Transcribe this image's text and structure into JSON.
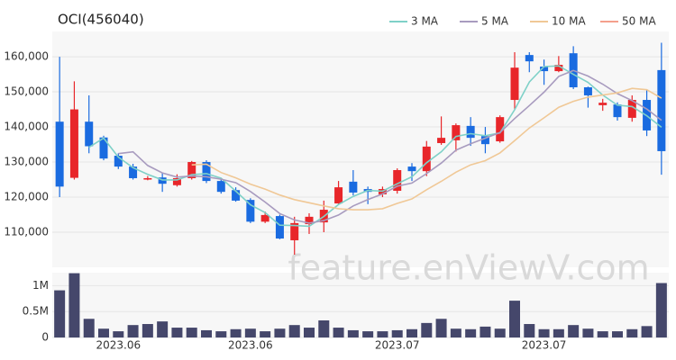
{
  "chart_data": [
    {
      "type": "candlestick",
      "title": "OCI(456040)",
      "categories": [
        null,
        null,
        null,
        null,
        "2023.06",
        null,
        null,
        null,
        null,
        null,
        null,
        null,
        null,
        "2023.06",
        null,
        null,
        null,
        null,
        null,
        null,
        null,
        null,
        null,
        "2023.07",
        null,
        null,
        null,
        null,
        null,
        null,
        null,
        null,
        null,
        "2023.07",
        null,
        null,
        null,
        null,
        null,
        null,
        null,
        null
      ],
      "open": [
        141500,
        125500,
        141500,
        137000,
        131800,
        128700,
        125000,
        125600,
        123400,
        125400,
        130000,
        124600,
        122000,
        119200,
        113000,
        114600,
        107700,
        112300,
        112800,
        118200,
        124400,
        122300,
        120800,
        121800,
        128700,
        127400,
        135400,
        136200,
        140300,
        137400,
        135900,
        147700,
        160500,
        157200,
        155900,
        161000,
        151300,
        146200,
        146400,
        142600,
        147700,
        156200
      ],
      "high": [
        160000,
        153000,
        149000,
        137500,
        132500,
        129500,
        126000,
        127000,
        126500,
        130300,
        130500,
        125400,
        122800,
        119700,
        115900,
        115000,
        114400,
        115400,
        119000,
        124600,
        127700,
        123000,
        123000,
        128200,
        129700,
        136000,
        143000,
        141000,
        142800,
        140000,
        143300,
        161300,
        161300,
        159200,
        160200,
        163000,
        151500,
        148000,
        147000,
        149000,
        150500,
        164000
      ],
      "low": [
        120000,
        125000,
        132500,
        130500,
        128000,
        125000,
        124800,
        121500,
        123000,
        125000,
        124000,
        121000,
        118700,
        112600,
        112600,
        108000,
        103600,
        109500,
        110000,
        118000,
        120500,
        118000,
        120000,
        121000,
        124600,
        126000,
        134900,
        133000,
        134600,
        132500,
        135500,
        145000,
        155600,
        152000,
        155600,
        150800,
        145500,
        144600,
        141800,
        141500,
        137400,
        126400
      ],
      "close": [
        123000,
        145000,
        134500,
        131000,
        128700,
        125400,
        125400,
        123800,
        125400,
        130000,
        124600,
        121500,
        119000,
        113000,
        114900,
        108200,
        112600,
        114400,
        116400,
        122800,
        121300,
        121500,
        122300,
        127700,
        127400,
        134400,
        136900,
        140500,
        136900,
        135100,
        142800,
        156900,
        158700,
        155900,
        157700,
        151300,
        149000,
        146900,
        142800,
        147700,
        139000,
        133100
      ],
      "up_color": "#e8262a",
      "down_color": "#1a6be0",
      "series": [
        {
          "name": "3 MA",
          "color": "#7fd1c8",
          "values": [
            null,
            null,
            134200,
            136800,
            131400,
            128400,
            126500,
            124900,
            124900,
            126400,
            126700,
            125400,
            121700,
            117800,
            115600,
            112000,
            111900,
            111700,
            114500,
            117900,
            120200,
            121900,
            121700,
            123800,
            125800,
            129800,
            132900,
            137300,
            138100,
            137500,
            138300,
            144900,
            152800,
            157200,
            157400,
            155000,
            152700,
            149100,
            146200,
            145800,
            143200,
            139900
          ]
        },
        {
          "name": "5 MA",
          "color": "#a89bbf",
          "values": [
            null,
            null,
            null,
            null,
            132400,
            132900,
            129000,
            126900,
            125700,
            126000,
            125800,
            125100,
            124100,
            121600,
            118600,
            115300,
            113500,
            112600,
            113300,
            114900,
            117500,
            119300,
            120900,
            123100,
            124000,
            126700,
            129700,
            133400,
            135200,
            136800,
            138400,
            142400,
            146100,
            149900,
            154400,
            156100,
            154500,
            152200,
            149500,
            147500,
            145100,
            141900
          ]
        },
        {
          "name": "10 MA",
          "color": "#f0c896",
          "values": [
            null,
            null,
            null,
            null,
            null,
            null,
            null,
            null,
            null,
            129200,
            129400,
            127000,
            125500,
            123700,
            122300,
            120600,
            119300,
            118400,
            117500,
            116700,
            116400,
            116400,
            116700,
            118200,
            119500,
            122100,
            124500,
            127100,
            129200,
            130400,
            132600,
            136100,
            139700,
            142600,
            145600,
            147300,
            148500,
            149100,
            149700,
            151000,
            150600,
            148200
          ]
        },
        {
          "name": "50 MA",
          "color": "#f4a08c",
          "values": [
            null,
            null,
            null,
            null,
            null,
            null,
            null,
            null,
            null,
            null,
            null,
            null,
            null,
            null,
            null,
            null,
            null,
            null,
            null,
            null,
            null,
            null,
            null,
            null,
            null,
            null,
            null,
            null,
            null,
            null,
            null,
            null,
            null,
            null,
            null,
            null,
            null,
            null,
            null,
            null,
            null,
            null
          ]
        }
      ],
      "ylim": [
        100000,
        167200
      ],
      "yticks": [
        {
          "value": 110000,
          "label": "110,000"
        },
        {
          "value": 120000,
          "label": "120,000"
        },
        {
          "value": 130000,
          "label": "130,000"
        },
        {
          "value": 140000,
          "label": "140,000"
        },
        {
          "value": 150000,
          "label": "150,000"
        },
        {
          "value": 160000,
          "label": "160,000"
        }
      ],
      "grid": true,
      "watermark": "feature.enViewV.com"
    },
    {
      "type": "bar",
      "color": "#45476b",
      "values": [
        910000,
        1240000,
        360000,
        170000,
        120000,
        240000,
        260000,
        310000,
        190000,
        190000,
        140000,
        120000,
        160000,
        170000,
        120000,
        170000,
        240000,
        190000,
        330000,
        190000,
        140000,
        120000,
        120000,
        140000,
        160000,
        280000,
        360000,
        170000,
        160000,
        210000,
        170000,
        710000,
        260000,
        160000,
        160000,
        240000,
        170000,
        120000,
        120000,
        160000,
        220000,
        1050000
      ],
      "ylim": [
        0,
        1250000
      ],
      "yticks": [
        0,
        {
          "value": 500000,
          "label": "0.5M"
        },
        {
          "value": 1000000,
          "label": "1M"
        }
      ],
      "grid": true
    }
  ]
}
